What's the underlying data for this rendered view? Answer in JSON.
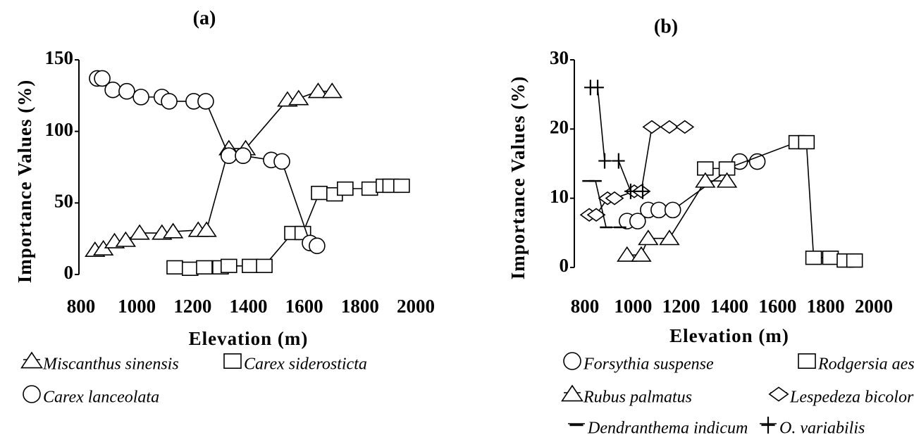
{
  "chart_data": [
    {
      "type": "line",
      "title": "(a)",
      "xlabel": "Elevation (m)",
      "ylabel": "Importance Values (%)",
      "xlim": [
        800,
        2000
      ],
      "xticks": [
        800,
        1000,
        1200,
        1400,
        1600,
        1800,
        2000
      ],
      "ylim": [
        0,
        150
      ],
      "yticks": [
        0,
        50,
        100,
        150
      ],
      "series": [
        {
          "name": "Miscanthus sinensis",
          "color": "#000000",
          "marker": "triangle",
          "x": [
            850,
            880,
            920,
            960,
            1010,
            1090,
            1130,
            1220,
            1250,
            1330,
            1390,
            1540,
            1580,
            1650,
            1700
          ],
          "values": [
            17,
            18,
            23,
            24,
            29,
            29,
            30,
            31,
            31,
            88,
            88,
            122,
            123,
            128,
            128
          ]
        },
        {
          "name": "Carex siderosticta",
          "color": "#000000",
          "marker": "square",
          "x": [
            1136,
            1191,
            1242,
            1300,
            1330,
            1406,
            1457,
            1558,
            1595,
            1654,
            1709,
            1747,
            1835,
            1886,
            1910,
            1949
          ],
          "values": [
            5,
            4,
            5,
            5,
            6,
            6,
            6,
            29,
            29,
            57,
            56,
            60,
            60,
            62,
            62,
            62
          ]
        },
        {
          "name": "Carex lanceolata",
          "color": "#000000",
          "marker": "circle",
          "x": [
            858,
            876,
            914,
            964,
            1015,
            1090,
            1116,
            1204,
            1247,
            1330,
            1381,
            1482,
            1520,
            1621,
            1646
          ],
          "values": [
            137,
            137,
            129,
            128,
            124,
            124,
            121,
            121,
            121,
            83,
            83,
            80,
            79,
            22,
            20
          ]
        }
      ]
    },
    {
      "type": "line",
      "title": "(b)",
      "xlabel": "Elevation (m)",
      "ylabel": "Importance Values (%)",
      "xlim": [
        800,
        2000
      ],
      "xticks": [
        800,
        1000,
        1200,
        1400,
        1600,
        1800,
        2000
      ],
      "ylim": [
        0,
        30
      ],
      "yticks": [
        0,
        10,
        20,
        30
      ],
      "series": [
        {
          "name": "Forsythia suspense",
          "color": "#000000",
          "marker": "circle",
          "x": [
            975,
            1019,
            1063,
            1107,
            1165,
            1443,
            1516
          ],
          "values": [
            6.7,
            6.7,
            8.3,
            8.3,
            8.3,
            15.3,
            15.3
          ]
        },
        {
          "name": "Rodgersia aesculifolia",
          "color": "#000000",
          "marker": "square",
          "x": [
            1300,
            1390,
            1680,
            1720,
            1750,
            1820,
            1880,
            1920
          ],
          "values": [
            14.3,
            14.3,
            18.1,
            18.1,
            1.4,
            1.4,
            1.0,
            1.0
          ]
        },
        {
          "name": "Rubus palmatus",
          "color": "#000000",
          "marker": "triangle",
          "x": [
            975,
            1034,
            1063,
            1151,
            1300,
            1390
          ],
          "values": [
            1.8,
            1.8,
            4.2,
            4.2,
            12.5,
            12.5
          ]
        },
        {
          "name": "Lespedeza bicolor",
          "color": "#000000",
          "marker": "diamond",
          "x": [
            818,
            847,
            894,
            923,
            1005,
            1034,
            1078,
            1151,
            1215
          ],
          "values": [
            7.6,
            7.6,
            10,
            10,
            11,
            11,
            20.3,
            20.3,
            20.3
          ]
        },
        {
          "name": "Dendranthema indicum",
          "color": "#000000",
          "marker": "dash",
          "x": [
            815,
            844,
            888,
            946
          ],
          "values": [
            12.5,
            12.5,
            5.8,
            5.8
          ]
        },
        {
          "name": "O. variabilis",
          "color": "#000000",
          "marker": "plus",
          "x": [
            823,
            853,
            882,
            940,
            990,
            1040
          ],
          "values": [
            26,
            26,
            15.4,
            15.4,
            11,
            11
          ]
        }
      ]
    }
  ]
}
